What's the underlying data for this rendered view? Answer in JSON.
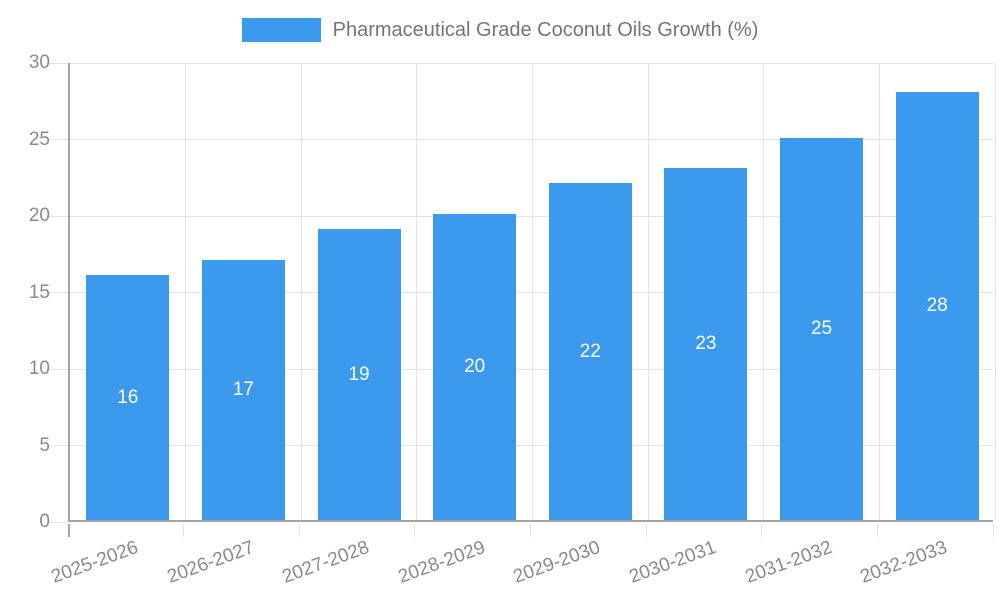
{
  "chart_data": {
    "type": "bar",
    "title": "Pharmaceutical Grade Coconut Oils Growth (%)",
    "categories": [
      "2025-2026",
      "2026-2027",
      "2027-2028",
      "2028-2029",
      "2029-2030",
      "2030-2031",
      "2031-2032",
      "2032-2033"
    ],
    "series": [
      {
        "name": "Pharmaceutical Grade Coconut Oils Growth (%)",
        "values": [
          16,
          17,
          19,
          20,
          22,
          23,
          25,
          28
        ]
      }
    ],
    "xlabel": "",
    "ylabel": "",
    "ylim": [
      0,
      30
    ],
    "yticks": [
      0,
      5,
      10,
      15,
      20,
      25,
      30
    ],
    "grid": true,
    "legend_position": "top",
    "value_labels": "inside-center"
  },
  "colors": {
    "bar": "#3b99ee",
    "gridline": "#e3e3e3",
    "axis_line": "#a3a3a3",
    "tick_text": "#8a8a8a",
    "legend_text": "#757575",
    "value_label_text": "#ffffff",
    "background": "#ffffff"
  }
}
